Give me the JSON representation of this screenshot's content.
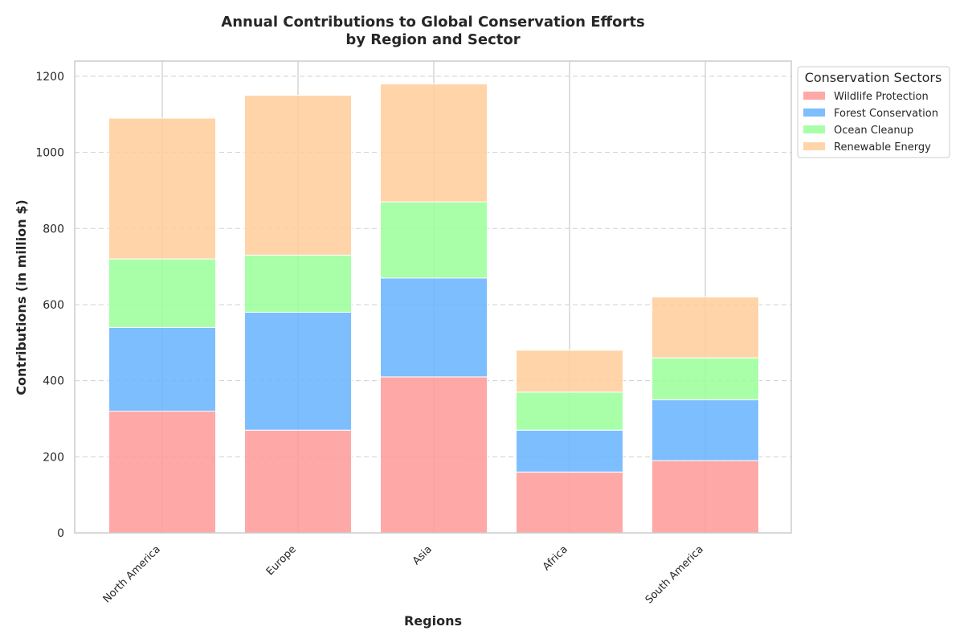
{
  "chart_data": {
    "type": "bar",
    "stacked": true,
    "title_line1": "Annual Contributions to Global Conservation Efforts",
    "title_line2": "by Region and Sector",
    "xlabel": "Regions",
    "ylabel": "Contributions (in million $)",
    "categories": [
      "North America",
      "Europe",
      "Asia",
      "Africa",
      "South America"
    ],
    "ylim": [
      0,
      1240
    ],
    "yticks": [
      0,
      200,
      400,
      600,
      800,
      1000,
      1200
    ],
    "grid": "horizontal dashed",
    "legend": {
      "title": "Conservation Sectors",
      "placement": "outside top-right"
    },
    "series": [
      {
        "name": "Wildlife Protection",
        "color": "#ff9999",
        "values": [
          320,
          270,
          410,
          160,
          190
        ]
      },
      {
        "name": "Forest Conservation",
        "color": "#66b3ff",
        "values": [
          220,
          310,
          260,
          110,
          160
        ]
      },
      {
        "name": "Ocean Cleanup",
        "color": "#99ff99",
        "values": [
          180,
          150,
          200,
          100,
          110
        ]
      },
      {
        "name": "Renewable Energy",
        "color": "#ffcc99",
        "values": [
          370,
          420,
          310,
          110,
          160
        ]
      }
    ]
  }
}
